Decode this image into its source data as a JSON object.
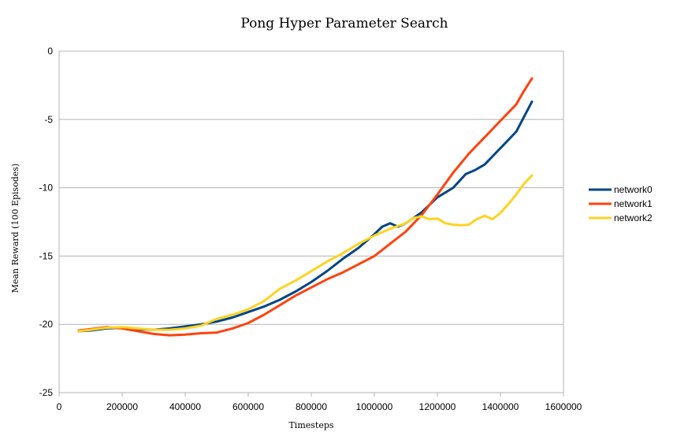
{
  "chart_data": {
    "type": "line",
    "title": "Pong  Hyper  Parameter  Search",
    "xlabel": "Timesteps",
    "ylabel": "Mean Reward  (100 Episodes)",
    "xlim": [
      0,
      1600000
    ],
    "ylim": [
      -25,
      0
    ],
    "xticks": [
      0,
      200000,
      400000,
      600000,
      800000,
      1000000,
      1200000,
      1400000,
      1600000
    ],
    "xtick_labels": [
      "0",
      "200000",
      "400000",
      "600000",
      "800000",
      "1000000",
      "1200000",
      "1400000",
      "1600000"
    ],
    "yticks": [
      0,
      -5,
      -10,
      -15,
      -20,
      -25
    ],
    "ytick_labels": [
      "0",
      "-5",
      "-10",
      "-15",
      "-20",
      "-25"
    ],
    "grid": "horizontal",
    "legend_position": "right",
    "series": [
      {
        "name": "network0",
        "color": "#004586",
        "points": [
          [
            62500,
            -20.5
          ],
          [
            100000,
            -20.45
          ],
          [
            150000,
            -20.3
          ],
          [
            200000,
            -20.25
          ],
          [
            250000,
            -20.35
          ],
          [
            300000,
            -20.4
          ],
          [
            350000,
            -20.3
          ],
          [
            400000,
            -20.15
          ],
          [
            450000,
            -20.0
          ],
          [
            500000,
            -19.8
          ],
          [
            550000,
            -19.5
          ],
          [
            600000,
            -19.1
          ],
          [
            650000,
            -18.7
          ],
          [
            700000,
            -18.2
          ],
          [
            750000,
            -17.6
          ],
          [
            800000,
            -16.9
          ],
          [
            850000,
            -16.1
          ],
          [
            900000,
            -15.2
          ],
          [
            950000,
            -14.4
          ],
          [
            1000000,
            -13.4
          ],
          [
            1025000,
            -12.85
          ],
          [
            1050000,
            -12.6
          ],
          [
            1075000,
            -12.85
          ],
          [
            1100000,
            -12.6
          ],
          [
            1150000,
            -11.8
          ],
          [
            1200000,
            -10.7
          ],
          [
            1250000,
            -10.0
          ],
          [
            1290000,
            -9.0
          ],
          [
            1320000,
            -8.7
          ],
          [
            1350000,
            -8.3
          ],
          [
            1400000,
            -7.1
          ],
          [
            1450000,
            -5.9
          ],
          [
            1475000,
            -4.8
          ],
          [
            1500000,
            -3.7
          ]
        ]
      },
      {
        "name": "network1",
        "color": "#ff420e",
        "points": [
          [
            62500,
            -20.45
          ],
          [
            100000,
            -20.35
          ],
          [
            150000,
            -20.2
          ],
          [
            200000,
            -20.3
          ],
          [
            250000,
            -20.5
          ],
          [
            300000,
            -20.7
          ],
          [
            350000,
            -20.8
          ],
          [
            400000,
            -20.75
          ],
          [
            450000,
            -20.65
          ],
          [
            500000,
            -20.6
          ],
          [
            550000,
            -20.3
          ],
          [
            600000,
            -19.9
          ],
          [
            650000,
            -19.3
          ],
          [
            700000,
            -18.6
          ],
          [
            750000,
            -17.9
          ],
          [
            800000,
            -17.3
          ],
          [
            850000,
            -16.7
          ],
          [
            900000,
            -16.2
          ],
          [
            950000,
            -15.6
          ],
          [
            1000000,
            -15.0
          ],
          [
            1050000,
            -14.1
          ],
          [
            1100000,
            -13.2
          ],
          [
            1150000,
            -12.0
          ],
          [
            1200000,
            -10.5
          ],
          [
            1250000,
            -8.9
          ],
          [
            1300000,
            -7.5
          ],
          [
            1350000,
            -6.3
          ],
          [
            1400000,
            -5.1
          ],
          [
            1450000,
            -3.9
          ],
          [
            1475000,
            -2.9
          ],
          [
            1500000,
            -2.0
          ]
        ]
      },
      {
        "name": "network2",
        "color": "#ffd320",
        "points": [
          [
            62500,
            -20.5
          ],
          [
            100000,
            -20.4
          ],
          [
            150000,
            -20.25
          ],
          [
            200000,
            -20.2
          ],
          [
            250000,
            -20.3
          ],
          [
            300000,
            -20.4
          ],
          [
            350000,
            -20.4
          ],
          [
            400000,
            -20.3
          ],
          [
            450000,
            -20.1
          ],
          [
            500000,
            -19.6
          ],
          [
            550000,
            -19.3
          ],
          [
            600000,
            -18.9
          ],
          [
            650000,
            -18.3
          ],
          [
            700000,
            -17.4
          ],
          [
            750000,
            -16.8
          ],
          [
            800000,
            -16.1
          ],
          [
            850000,
            -15.4
          ],
          [
            900000,
            -14.8
          ],
          [
            950000,
            -14.1
          ],
          [
            1000000,
            -13.5
          ],
          [
            1050000,
            -13.0
          ],
          [
            1100000,
            -12.6
          ],
          [
            1125000,
            -12.2
          ],
          [
            1150000,
            -12.1
          ],
          [
            1175000,
            -12.3
          ],
          [
            1200000,
            -12.25
          ],
          [
            1225000,
            -12.6
          ],
          [
            1250000,
            -12.7
          ],
          [
            1275000,
            -12.75
          ],
          [
            1300000,
            -12.7
          ],
          [
            1325000,
            -12.3
          ],
          [
            1350000,
            -12.05
          ],
          [
            1375000,
            -12.3
          ],
          [
            1400000,
            -11.85
          ],
          [
            1425000,
            -11.2
          ],
          [
            1450000,
            -10.5
          ],
          [
            1475000,
            -9.7
          ],
          [
            1500000,
            -9.1
          ]
        ]
      }
    ]
  }
}
